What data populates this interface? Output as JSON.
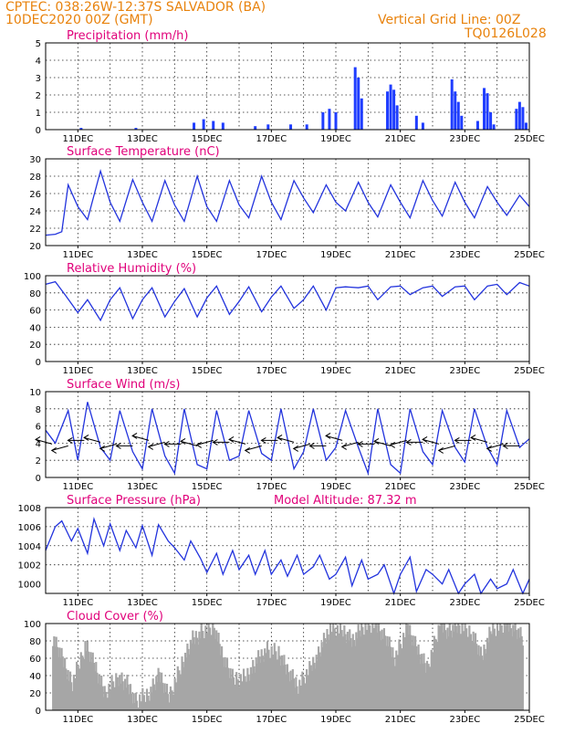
{
  "header": {
    "line1": "CPTEC:   038:26W-12:37S   SALVADOR (BA)",
    "line2_left": "10DEC2020 00Z (GMT)",
    "line2_right": "Vertical Grid Line: 00Z",
    "line3_right": "TQ0126L028"
  },
  "x_labels": [
    "11DEC",
    "13DEC",
    "15DEC",
    "17DEC",
    "19DEC",
    "21DEC",
    "23DEC",
    "25DEC"
  ],
  "colors": {
    "line": "#2233dd",
    "bars": "#1f3dff",
    "cloud": "#a6a6a6",
    "title": "#e0007a",
    "header": "#e8820c"
  },
  "panels": [
    {
      "key": "precip",
      "title": "Precipitation (mm/h)",
      "yticks": [
        "0",
        "1",
        "2",
        "3",
        "4",
        "5"
      ]
    },
    {
      "key": "temp",
      "title": "Surface Temperature (nC)",
      "yticks": [
        "20",
        "22",
        "24",
        "26",
        "28",
        "30"
      ]
    },
    {
      "key": "rh",
      "title": "Relative Humidity (%)",
      "yticks": [
        "0",
        "20",
        "40",
        "60",
        "80",
        "100"
      ]
    },
    {
      "key": "wind",
      "title": "Surface Wind (m/s)",
      "yticks": [
        "0",
        "2",
        "4",
        "6",
        "8",
        "10"
      ]
    },
    {
      "key": "pres",
      "title": "Surface Pressure (hPa)",
      "extra": "Model Altitude: 87.32  m",
      "yticks": [
        "1000",
        "1002",
        "1004",
        "1006",
        "1008"
      ]
    },
    {
      "key": "cloud",
      "title": "Cloud Cover (%)",
      "yticks": [
        "0",
        "20",
        "40",
        "60",
        "80",
        "100"
      ]
    }
  ],
  "chart_data": [
    {
      "type": "bar",
      "title": "Precipitation (mm/h)",
      "xlim_days": [
        10,
        25
      ],
      "ylim": [
        0,
        5
      ],
      "note": "hourly bars; values approximate",
      "x": [
        11.1,
        12.8,
        14.6,
        14.9,
        15.2,
        15.5,
        16.5,
        16.9,
        17.6,
        18.1,
        18.6,
        18.8,
        19.0,
        19.6,
        19.7,
        19.8,
        20.6,
        20.7,
        20.8,
        20.9,
        21.5,
        21.7,
        22.6,
        22.7,
        22.8,
        22.9,
        23.4,
        23.6,
        23.7,
        23.8,
        23.9,
        24.6,
        24.7,
        24.8,
        24.9
      ],
      "values": [
        0.1,
        0.1,
        0.4,
        0.6,
        0.5,
        0.4,
        0.2,
        0.3,
        0.3,
        0.3,
        1.0,
        1.2,
        1.0,
        3.6,
        3.0,
        1.8,
        2.2,
        2.6,
        2.3,
        1.4,
        0.8,
        0.4,
        2.9,
        2.2,
        1.6,
        0.8,
        0.5,
        2.4,
        2.1,
        1.0,
        0.3,
        1.2,
        1.6,
        1.3,
        0.4
      ]
    },
    {
      "type": "line",
      "title": "Surface Temperature (nC)",
      "xlim_days": [
        10,
        25
      ],
      "ylim": [
        20,
        30
      ],
      "x": [
        10.0,
        10.3,
        10.5,
        10.7,
        11.0,
        11.3,
        11.7,
        12.0,
        12.3,
        12.7,
        13.0,
        13.3,
        13.7,
        14.0,
        14.3,
        14.7,
        15.0,
        15.3,
        15.7,
        16.0,
        16.3,
        16.7,
        17.0,
        17.3,
        17.7,
        18.0,
        18.3,
        18.7,
        19.0,
        19.3,
        19.7,
        20.0,
        20.3,
        20.7,
        21.0,
        21.3,
        21.7,
        22.0,
        22.3,
        22.7,
        23.0,
        23.3,
        23.7,
        24.0,
        24.3,
        24.7,
        25.0
      ],
      "values": [
        21.2,
        21.3,
        21.6,
        27.0,
        24.5,
        23.0,
        28.6,
        25.0,
        22.8,
        27.6,
        25.0,
        22.8,
        27.5,
        24.7,
        22.8,
        28.0,
        24.5,
        22.8,
        27.5,
        24.7,
        23.2,
        28.0,
        25.0,
        23.0,
        27.5,
        25.5,
        23.8,
        27.0,
        25.0,
        24.0,
        27.3,
        25.0,
        23.3,
        27.0,
        25.0,
        23.2,
        27.5,
        25.2,
        23.4,
        27.3,
        25.0,
        23.2,
        26.8,
        25.0,
        23.5,
        25.8,
        24.5
      ]
    },
    {
      "type": "line",
      "title": "Relative Humidity (%)",
      "xlim_days": [
        10,
        25
      ],
      "ylim": [
        0,
        100
      ],
      "x": [
        10.0,
        10.3,
        10.6,
        11.0,
        11.3,
        11.7,
        12.0,
        12.3,
        12.7,
        13.0,
        13.3,
        13.7,
        14.0,
        14.3,
        14.7,
        15.0,
        15.3,
        15.7,
        16.0,
        16.3,
        16.7,
        17.0,
        17.3,
        17.7,
        18.0,
        18.3,
        18.7,
        19.0,
        19.3,
        19.7,
        20.0,
        20.3,
        20.7,
        21.0,
        21.3,
        21.7,
        22.0,
        22.3,
        22.7,
        23.0,
        23.3,
        23.7,
        24.0,
        24.3,
        24.7,
        25.0
      ],
      "values": [
        90,
        93,
        78,
        57,
        72,
        48,
        72,
        86,
        50,
        72,
        86,
        52,
        70,
        85,
        52,
        74,
        88,
        55,
        70,
        87,
        58,
        75,
        88,
        62,
        72,
        88,
        60,
        86,
        87,
        86,
        88,
        72,
        87,
        88,
        78,
        86,
        88,
        76,
        87,
        88,
        72,
        88,
        90,
        78,
        92,
        88
      ]
    },
    {
      "type": "line",
      "title": "Surface Wind (m/s)",
      "xlim_days": [
        10,
        25
      ],
      "ylim": [
        0,
        10
      ],
      "x": [
        10.0,
        10.3,
        10.7,
        11.0,
        11.3,
        11.7,
        12.0,
        12.3,
        12.7,
        13.0,
        13.3,
        13.7,
        14.0,
        14.3,
        14.7,
        15.0,
        15.3,
        15.7,
        16.0,
        16.3,
        16.7,
        17.0,
        17.3,
        17.7,
        18.0,
        18.3,
        18.7,
        19.0,
        19.3,
        19.7,
        20.0,
        20.3,
        20.7,
        21.0,
        21.3,
        21.7,
        22.0,
        22.3,
        22.7,
        23.0,
        23.3,
        23.7,
        24.0,
        24.3,
        24.7,
        25.0
      ],
      "values": [
        5.5,
        4.0,
        7.8,
        2.0,
        8.8,
        3.5,
        2.0,
        7.8,
        3.0,
        1.0,
        8.0,
        2.5,
        0.5,
        8.0,
        1.5,
        1.0,
        7.8,
        2.0,
        2.5,
        7.8,
        2.8,
        2.0,
        8.0,
        1.0,
        3.0,
        8.0,
        2.0,
        3.5,
        7.8,
        3.5,
        0.5,
        8.0,
        1.5,
        0.5,
        8.0,
        3.0,
        1.5,
        7.8,
        3.5,
        1.8,
        8.0,
        3.5,
        1.5,
        7.8,
        3.5,
        4.5
      ],
      "vectors_note": "daily wind barb arrows along the 4 m/s line"
    },
    {
      "type": "line",
      "title": "Surface Pressure (hPa)",
      "annotation": "Model Altitude: 87.32  m",
      "xlim_days": [
        10,
        25
      ],
      "ylim": [
        999,
        1008
      ],
      "x": [
        10.0,
        10.3,
        10.5,
        10.8,
        11.0,
        11.3,
        11.5,
        11.8,
        12.0,
        12.3,
        12.5,
        12.8,
        13.0,
        13.3,
        13.5,
        13.8,
        14.0,
        14.3,
        14.5,
        14.8,
        15.0,
        15.3,
        15.5,
        15.8,
        16.0,
        16.3,
        16.5,
        16.8,
        17.0,
        17.3,
        17.5,
        17.8,
        18.0,
        18.3,
        18.5,
        18.8,
        19.0,
        19.3,
        19.5,
        19.8,
        20.0,
        20.3,
        20.5,
        20.8,
        21.0,
        21.3,
        21.5,
        21.8,
        22.0,
        22.3,
        22.5,
        22.8,
        23.0,
        23.3,
        23.5,
        23.8,
        24.0,
        24.3,
        24.5,
        24.8,
        25.0
      ],
      "values": [
        1003.5,
        1006.0,
        1006.6,
        1004.5,
        1005.8,
        1003.2,
        1006.8,
        1004.0,
        1006.3,
        1003.5,
        1005.6,
        1003.8,
        1006.1,
        1003.0,
        1006.2,
        1004.5,
        1003.8,
        1002.5,
        1004.5,
        1002.7,
        1001.2,
        1003.2,
        1001.0,
        1003.5,
        1001.5,
        1003.0,
        1001.0,
        1003.5,
        1001.0,
        1002.5,
        1000.8,
        1003.0,
        1001.0,
        1001.8,
        1003.0,
        1000.5,
        1001.0,
        1002.8,
        999.8,
        1002.5,
        1000.5,
        1001.0,
        1002.0,
        998.8,
        1001.0,
        1002.8,
        999.2,
        1001.5,
        1001.0,
        1000.0,
        1001.5,
        999.0,
        1000.0,
        1001.0,
        999.0,
        1000.5,
        999.5,
        1000.0,
        1001.5,
        999.0,
        1000.5
      ]
    },
    {
      "type": "bar",
      "title": "Cloud Cover (%)",
      "xlim_days": [
        10,
        25
      ],
      "ylim": [
        0,
        100
      ],
      "note": "dense hourly gray bars; daily envelope values approximate",
      "x": [
        10.2,
        10.5,
        10.8,
        11.2,
        11.5,
        11.8,
        12.2,
        12.5,
        12.8,
        13.2,
        13.5,
        13.8,
        14.2,
        14.5,
        14.8,
        15.2,
        15.5,
        15.8,
        16.2,
        16.5,
        16.8,
        17.2,
        17.5,
        17.8,
        18.2,
        18.5,
        18.8,
        19.2,
        19.5,
        19.8,
        20.2,
        20.5,
        20.8,
        21.2,
        21.5,
        21.8,
        22.2,
        22.5,
        22.8,
        23.2,
        23.5,
        23.8,
        24.2,
        24.5,
        24.8
      ],
      "values": [
        85,
        60,
        30,
        75,
        50,
        20,
        40,
        30,
        10,
        20,
        40,
        15,
        55,
        80,
        90,
        95,
        60,
        35,
        40,
        55,
        70,
        65,
        45,
        30,
        50,
        70,
        95,
        90,
        80,
        98,
        100,
        85,
        60,
        95,
        70,
        50,
        100,
        90,
        98,
        90,
        60,
        95,
        100,
        95,
        80
      ]
    }
  ]
}
